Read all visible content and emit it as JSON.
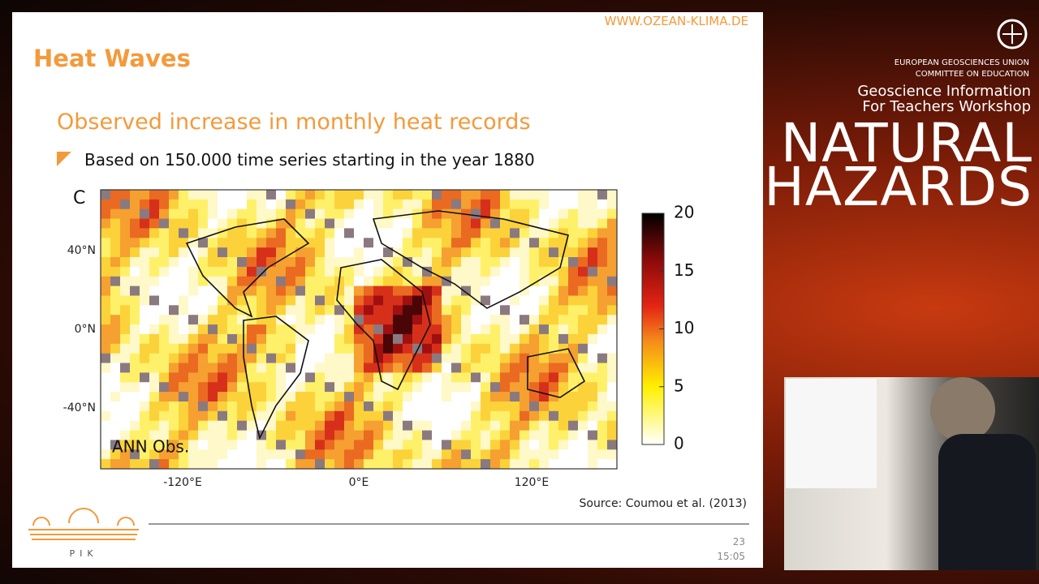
{
  "header": {
    "url": "WWW.OZEAN-KLIMA.DE",
    "title": "Heat Waves"
  },
  "slide": {
    "subtitle": "Observed increase in monthly heat records",
    "bullet": "Based on 150.000 time series starting in the year 1880",
    "figure": {
      "panel": "C",
      "lat_labels": [
        "40°N",
        "0°N",
        "-40°N"
      ],
      "lon_labels": [
        "-120°E",
        "0°E",
        "120°E"
      ],
      "inset_label": "ANN Obs.",
      "colorbar_ticks": [
        20,
        15,
        10,
        5,
        0
      ]
    },
    "source": "Source: Coumou et al. (2013)",
    "logo": "PIK",
    "page": "23",
    "time": "15:05"
  },
  "sidebar": {
    "org": [
      "EUROPEAN GEOSCIENCES UNION",
      "COMMITTEE ON EDUCATION"
    ],
    "workshop": [
      "Geoscience Information",
      "For Teachers Workshop"
    ],
    "title": [
      "NATURAL",
      "HAZARDS"
    ]
  }
}
